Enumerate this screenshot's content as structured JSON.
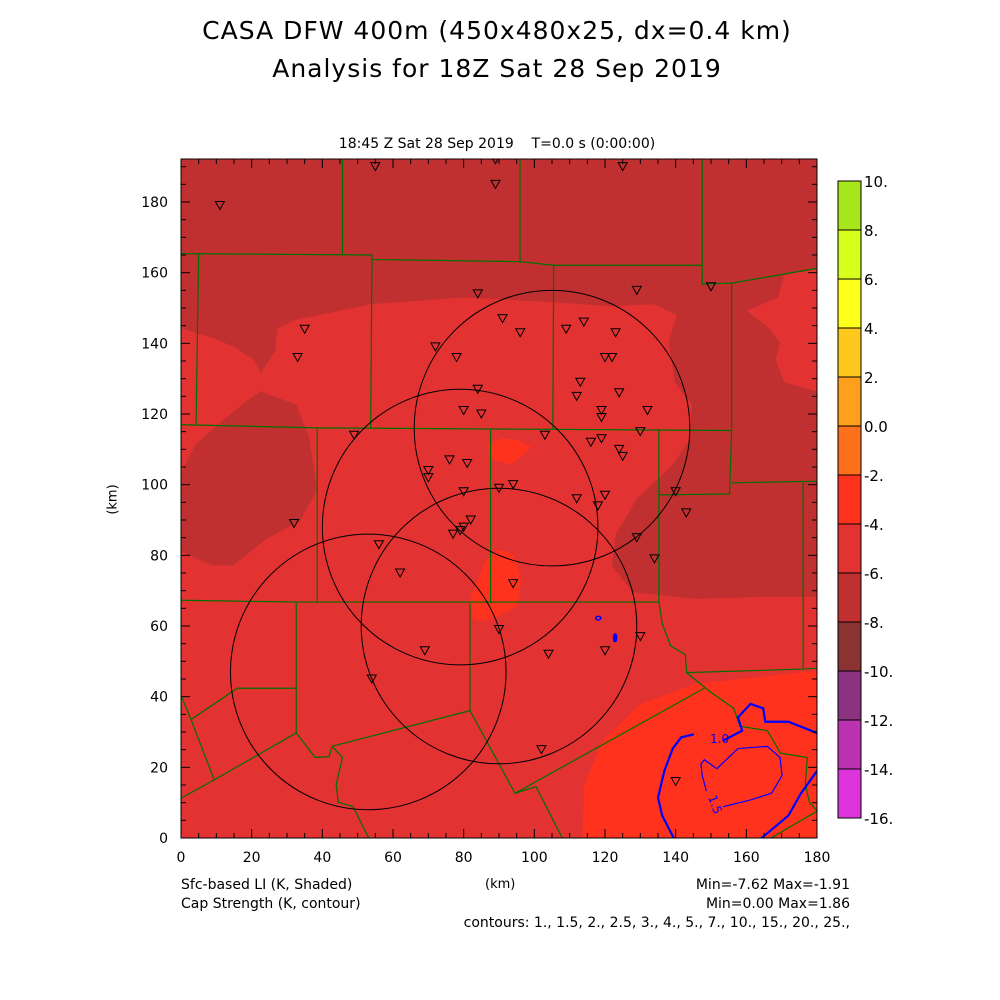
{
  "title": {
    "line1": "CASA DFW 400m (450x480x25, dx=0.4 km)",
    "line2": "Analysis for 18Z Sat 28 Sep 2019"
  },
  "subtitle": "18:45 Z Sat 28 Sep 2019    T=0.0 s (0:00:00)",
  "footer": {
    "field1": "Sfc-based LI (K, Shaded)",
    "field2": "Cap Strength (K, contour)",
    "xlabel": "(km)",
    "stats1": "Min=-7.62 Max=-1.91",
    "stats2": "Min=0.00 Max=1.86",
    "contours": "contours: 1., 1.5, 2., 2.5, 3., 4., 5., 7., 10., 15., 20., 25.,"
  },
  "chart_data": {
    "type": "heatmap",
    "title": "Sfc-based LI (K, Shaded) with Cap Strength (K, contour)",
    "xlabel": "(km)",
    "ylabel": "(km)",
    "xlim": [
      0,
      180
    ],
    "ylim": [
      0,
      192
    ],
    "xticks": [
      0,
      20,
      40,
      60,
      80,
      100,
      120,
      140,
      160,
      180
    ],
    "yticks": [
      0,
      20,
      40,
      60,
      80,
      100,
      120,
      140,
      160,
      180
    ],
    "grid": false,
    "colorbar": {
      "placement": "right",
      "labels": [
        "10.",
        "8.",
        "6.",
        "4.",
        "2.",
        "0.0",
        "-2.",
        "-4.",
        "-6.",
        "-8.",
        "-10.",
        "-12.",
        "-14.",
        "-16."
      ],
      "colors": [
        "#a8e61c",
        "#d6ff1c",
        "#ffff1c",
        "#ffc81c",
        "#ffa01c",
        "#ff701c",
        "#ff321e",
        "#e33232",
        "#c03030",
        "#8b3333",
        "#8b3380",
        "#bb33b0",
        "#dd33dd"
      ]
    },
    "li_min": -7.62,
    "li_max": -1.91,
    "cap_min": 0.0,
    "cap_max": 1.86,
    "cap_contour_labels": [
      "1.0",
      "1.5"
    ],
    "contour_color": "#0000ff",
    "county_line_color": "#007000",
    "radar_rings_km": [
      [
        105,
        116,
        39
      ],
      [
        79,
        88,
        39
      ],
      [
        90,
        60,
        39
      ],
      [
        53,
        47,
        39
      ]
    ],
    "stations_km": [
      [
        11,
        179
      ],
      [
        55,
        190
      ],
      [
        89,
        192
      ],
      [
        89,
        185
      ],
      [
        125,
        190
      ],
      [
        35,
        144
      ],
      [
        33,
        136
      ],
      [
        84,
        154
      ],
      [
        129,
        155
      ],
      [
        150,
        156
      ],
      [
        72,
        139
      ],
      [
        78,
        136
      ],
      [
        91,
        147
      ],
      [
        96,
        143
      ],
      [
        109,
        144
      ],
      [
        114,
        146
      ],
      [
        123,
        143
      ],
      [
        120,
        136
      ],
      [
        122,
        136
      ],
      [
        113,
        129
      ],
      [
        112,
        125
      ],
      [
        124,
        126
      ],
      [
        84,
        127
      ],
      [
        80,
        121
      ],
      [
        85,
        120
      ],
      [
        119,
        121
      ],
      [
        119,
        119
      ],
      [
        132,
        121
      ],
      [
        130,
        115
      ],
      [
        103,
        114
      ],
      [
        116,
        112
      ],
      [
        119,
        113
      ],
      [
        124,
        110
      ],
      [
        125,
        108
      ],
      [
        49,
        114
      ],
      [
        76,
        107
      ],
      [
        81,
        106
      ],
      [
        70,
        104
      ],
      [
        70,
        102
      ],
      [
        80,
        98
      ],
      [
        90,
        99
      ],
      [
        94,
        100
      ],
      [
        112,
        96
      ],
      [
        120,
        97
      ],
      [
        118,
        94
      ],
      [
        140,
        98
      ],
      [
        143,
        92
      ],
      [
        32,
        89
      ],
      [
        82,
        90
      ],
      [
        79,
        87
      ],
      [
        77,
        86
      ],
      [
        80,
        88
      ],
      [
        129,
        85
      ],
      [
        134,
        79
      ],
      [
        56,
        83
      ],
      [
        62,
        75
      ],
      [
        94,
        72
      ],
      [
        90,
        59
      ],
      [
        69,
        53
      ],
      [
        104,
        52
      ],
      [
        120,
        53
      ],
      [
        130,
        57
      ],
      [
        54,
        45
      ],
      [
        102,
        25
      ],
      [
        140,
        16
      ]
    ]
  }
}
